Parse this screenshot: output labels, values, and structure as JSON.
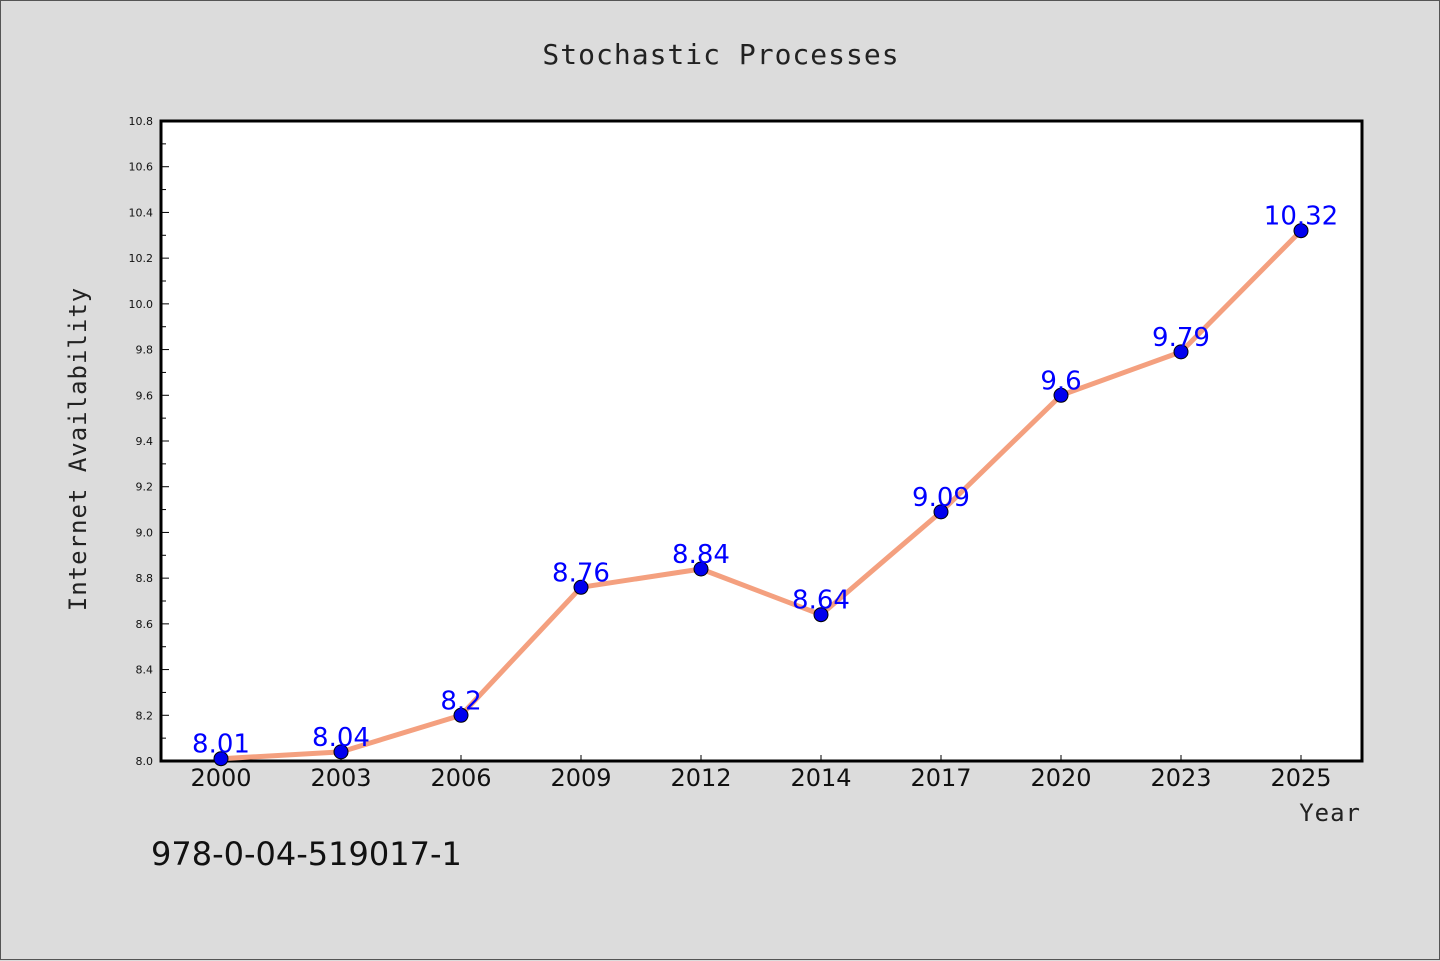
{
  "figure": {
    "code_text": "978-0-04-519017-1",
    "background": "#dcdcdc"
  },
  "chart_data": {
    "type": "line",
    "title": "Stochastic Processes",
    "xlabel": "Year",
    "ylabel": "Internet Availability",
    "categories": [
      "2000",
      "2003",
      "2006",
      "2009",
      "2012",
      "2014",
      "2017",
      "2020",
      "2023",
      "2025"
    ],
    "series": [
      {
        "values": [
          8.01,
          8.04,
          8.2,
          8.76,
          8.84,
          8.64,
          9.09,
          9.6,
          9.79,
          10.32
        ],
        "labels": [
          "8.01",
          "8.04",
          "8.2",
          "8.76",
          "8.84",
          "8.64",
          "9.09",
          "9.6",
          "9.79",
          "10.32"
        ],
        "line_color": "#f4a07f",
        "marker_color": "#0000ee",
        "label_color": "#0000ff"
      }
    ],
    "ylim": [
      8.0,
      10.8
    ],
    "yticks": [
      "8.0",
      "8.2",
      "8.4",
      "8.6",
      "8.8",
      "9.0",
      "9.2",
      "9.4",
      "9.6",
      "9.8",
      "10.0",
      "10.2",
      "10.4",
      "10.6",
      "10.8"
    ],
    "grid": false,
    "legend": false
  }
}
